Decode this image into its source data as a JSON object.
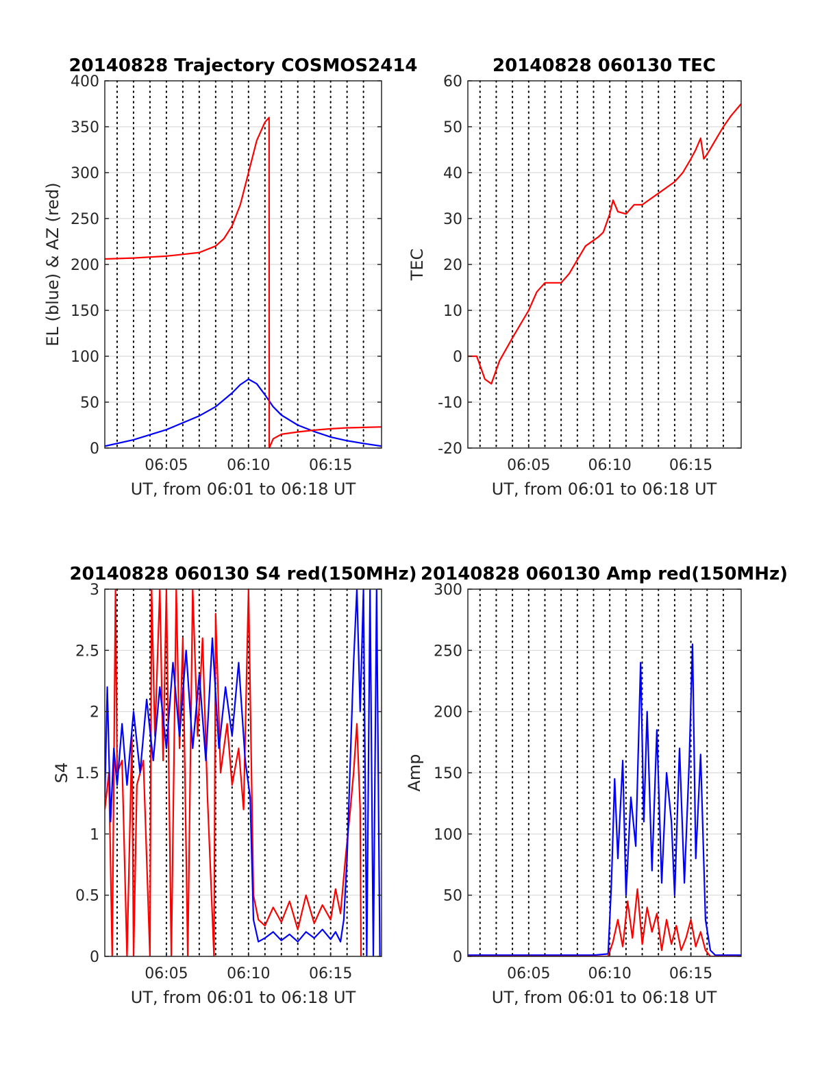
{
  "figure": {
    "background": "#ffffff",
    "grid_color": "#d9d9d9",
    "minute_line_color": "#000000"
  },
  "chart_data": [
    {
      "id": "trajectory",
      "type": "line",
      "title": "20140828 Trajectory COSMOS2414",
      "xlabel": "UT, from 06:01 to 06:18 UT",
      "ylabel": "EL (blue) & AZ (red)",
      "xlim": [
        1.25,
        18.1
      ],
      "ylim": [
        0,
        400
      ],
      "yticks": [
        0,
        50,
        100,
        150,
        200,
        250,
        300,
        350,
        400
      ],
      "yticklabels": [
        "0",
        "50",
        "100",
        "150",
        "200",
        "250",
        "300",
        "350",
        "400"
      ],
      "xticks": [
        5,
        10,
        15
      ],
      "xticklabels": [
        "06:05",
        "06:10",
        "06:15"
      ],
      "minute_lines": [
        2,
        3,
        4,
        5,
        6,
        7,
        8,
        9,
        10,
        11,
        12,
        13,
        14,
        15,
        16,
        17
      ],
      "grid": true,
      "series": [
        {
          "color": "#0000ff",
          "x": [
            1.25,
            3,
            5,
            7,
            8,
            9,
            9.5,
            10,
            10.5,
            11,
            11.5,
            12,
            13,
            14,
            15,
            16,
            17,
            18.1
          ],
          "y": [
            2,
            9,
            20,
            35,
            45,
            60,
            69,
            75,
            70,
            58,
            45,
            36,
            25,
            18,
            12,
            8,
            5,
            2
          ]
        },
        {
          "color": "#ff0000",
          "x": [
            1.25,
            3,
            5,
            7,
            8,
            8.5,
            9,
            9.5,
            10,
            10.5,
            11,
            11.25,
            11.26,
            11.5,
            12,
            13,
            14,
            15,
            16,
            17,
            18.1
          ],
          "y": [
            206,
            207,
            209,
            213,
            220,
            228,
            242,
            265,
            300,
            335,
            355,
            360,
            0,
            10,
            15,
            17.5,
            19.5,
            21,
            22,
            22.5,
            23
          ]
        }
      ]
    },
    {
      "id": "tec",
      "type": "line",
      "title": "20140828 060130 TEC",
      "xlabel": "UT, from 06:01 to 06:18 UT",
      "ylabel": "TEC",
      "xlim": [
        1.25,
        18.1
      ],
      "ylim": [
        -20,
        60
      ],
      "yticks": [
        -20,
        -10,
        0,
        10,
        20,
        30,
        40,
        50,
        60
      ],
      "yticklabels": [
        "-20",
        "-10",
        "0",
        "10",
        "20",
        "30",
        "40",
        "50",
        "60"
      ],
      "xticks": [
        5,
        10,
        15
      ],
      "xticklabels": [
        "06:05",
        "06:10",
        "06:15"
      ],
      "minute_lines": [
        2,
        3,
        4,
        5,
        6,
        7,
        8,
        9,
        10,
        11,
        12,
        13,
        14,
        15,
        16,
        17
      ],
      "grid": true,
      "series": [
        {
          "color": "#ff0000",
          "x": [
            1.25,
            1.8,
            2.3,
            2.7,
            3.2,
            4,
            5,
            5.5,
            6,
            7,
            7.5,
            8,
            8.5,
            9.3,
            9.6,
            10,
            10.2,
            10.5,
            11,
            11.5,
            12,
            13,
            14,
            14.5,
            15,
            15.3,
            15.6,
            15.8,
            16,
            16.5,
            17,
            17.5,
            18.1
          ],
          "y": [
            0,
            0,
            -5,
            -6,
            -1,
            4,
            10,
            14,
            16,
            16,
            18,
            21,
            24,
            26,
            27,
            31,
            34,
            31.5,
            31,
            33,
            33,
            35.5,
            38,
            40,
            43,
            45,
            47.5,
            43,
            44,
            47,
            50,
            52.5,
            55
          ]
        }
      ]
    },
    {
      "id": "s4",
      "type": "line",
      "title": "20140828 060130 S4 red(150MHz)",
      "xlabel": "UT, from 06:01 to 06:18 UT",
      "ylabel": "S4",
      "xlim": [
        1.25,
        18.1
      ],
      "ylim": [
        0,
        3
      ],
      "yticks": [
        0,
        0.5,
        1,
        1.5,
        2,
        2.5,
        3
      ],
      "yticklabels": [
        "0",
        "0.5",
        "1",
        "1.5",
        "2",
        "2.5",
        "3"
      ],
      "xticks": [
        5,
        10,
        15
      ],
      "xticklabels": [
        "06:05",
        "06:10",
        "06:15"
      ],
      "minute_lines": [
        2,
        3,
        4,
        5,
        6,
        7,
        8,
        9,
        10,
        11,
        12,
        13,
        14,
        15,
        16,
        17
      ],
      "grid": true,
      "series": [
        {
          "color": "#ff0000",
          "x": [
            1.25,
            1.5,
            1.7,
            1.9,
            2.0,
            2.3,
            2.6,
            2.9,
            3.0,
            3.2,
            3.6,
            4.0,
            4.1,
            4.3,
            4.6,
            4.8,
            5.0,
            5.3,
            5.6,
            5.8,
            6.0,
            6.3,
            6.6,
            6.9,
            7.2,
            7.5,
            7.9,
            8.0,
            8.3,
            8.7,
            9.0,
            9.4,
            9.7,
            10.0,
            10.3,
            10.6,
            11.0,
            11.5,
            12.0,
            12.5,
            13.0,
            13.5,
            14.0,
            14.5,
            15.0,
            15.3,
            15.6,
            15.9,
            16.2,
            16.4,
            16.6,
            16.8,
            16.85
          ],
          "y": [
            1.2,
            1.5,
            0,
            3.0,
            1.5,
            1.6,
            0,
            1.8,
            0,
            1.4,
            1.6,
            0,
            3.0,
            1.8,
            3.0,
            1.6,
            3.0,
            0,
            3.0,
            1.7,
            2.6,
            0,
            3.0,
            1.8,
            2.6,
            1.3,
            0,
            2.8,
            1.5,
            1.9,
            1.4,
            1.7,
            1.2,
            3.0,
            0.5,
            0.3,
            0.25,
            0.4,
            0.28,
            0.45,
            0.22,
            0.5,
            0.27,
            0.42,
            0.3,
            0.55,
            0.35,
            0.8,
            1.2,
            1.5,
            1.9,
            1.2,
            0
          ]
        },
        {
          "color": "#0000ff",
          "x": [
            1.25,
            1.4,
            1.6,
            1.8,
            2.0,
            2.3,
            2.6,
            3.0,
            3.4,
            3.8,
            4.2,
            4.6,
            5.0,
            5.4,
            5.8,
            6.2,
            6.6,
            7.0,
            7.4,
            7.8,
            8.2,
            8.6,
            9.0,
            9.4,
            9.8,
            10.1,
            10.3,
            10.6,
            11.0,
            11.5,
            12.0,
            12.5,
            13.0,
            13.5,
            14.0,
            14.5,
            15.0,
            15.3,
            15.6,
            15.8,
            16.0,
            16.2,
            16.4,
            16.6,
            16.8,
            17.0,
            17.2,
            17.4,
            17.6,
            17.8,
            18.0
          ],
          "y": [
            1.3,
            2.2,
            1.1,
            1.7,
            1.4,
            1.9,
            1.4,
            2.0,
            1.5,
            2.1,
            1.6,
            2.2,
            1.7,
            2.4,
            1.8,
            2.5,
            1.7,
            2.3,
            1.6,
            2.6,
            1.7,
            2.2,
            1.8,
            2.4,
            1.6,
            1.3,
            0.3,
            0.12,
            0.15,
            0.2,
            0.13,
            0.18,
            0.12,
            0.2,
            0.15,
            0.22,
            0.14,
            0.2,
            0.12,
            0.3,
            0.8,
            1.6,
            2.4,
            3.0,
            2.0,
            3.0,
            0,
            3.0,
            0,
            3.0,
            0
          ]
        }
      ]
    },
    {
      "id": "amp",
      "type": "line",
      "title": "20140828 060130 Amp red(150MHz)",
      "xlabel": "UT, from 06:01 to 06:18 UT",
      "ylabel": "Amp",
      "xlim": [
        1.25,
        18.1
      ],
      "ylim": [
        0,
        300
      ],
      "yticks": [
        0,
        50,
        100,
        150,
        200,
        250,
        300
      ],
      "yticklabels": [
        "0",
        "50",
        "100",
        "150",
        "200",
        "250",
        "300"
      ],
      "xticks": [
        5,
        10,
        15
      ],
      "xticklabels": [
        "06:05",
        "06:10",
        "06:15"
      ],
      "minute_lines": [
        2,
        3,
        4,
        5,
        6,
        7,
        8,
        9,
        10,
        11,
        12,
        13,
        14,
        15,
        16,
        17
      ],
      "grid": true,
      "series": [
        {
          "color": "#0000ff",
          "x": [
            1.25,
            3,
            5,
            7,
            9,
            9.9,
            10.1,
            10.3,
            10.5,
            10.8,
            11.0,
            11.3,
            11.6,
            11.9,
            12.1,
            12.3,
            12.6,
            12.9,
            13.2,
            13.5,
            13.8,
            14.0,
            14.3,
            14.6,
            14.9,
            15.1,
            15.3,
            15.6,
            15.9,
            16.2,
            16.5,
            17,
            18.1
          ],
          "y": [
            1,
            1,
            1,
            1,
            1,
            2,
            60,
            145,
            80,
            160,
            50,
            130,
            90,
            240,
            110,
            200,
            70,
            185,
            60,
            150,
            110,
            50,
            170,
            60,
            160,
            255,
            80,
            165,
            30,
            5,
            1,
            1,
            1
          ]
        },
        {
          "color": "#ff0000",
          "x": [
            1.25,
            9.9,
            10.2,
            10.5,
            10.8,
            11.1,
            11.4,
            11.7,
            12.0,
            12.3,
            12.6,
            12.9,
            13.2,
            13.5,
            13.8,
            14.1,
            14.4,
            14.7,
            15.0,
            15.3,
            15.6,
            15.9,
            16.2,
            18.1
          ],
          "y": [
            0,
            0,
            12,
            30,
            8,
            45,
            15,
            55,
            10,
            40,
            20,
            35,
            5,
            30,
            10,
            25,
            5,
            15,
            30,
            8,
            20,
            5,
            0,
            0
          ]
        }
      ]
    }
  ]
}
